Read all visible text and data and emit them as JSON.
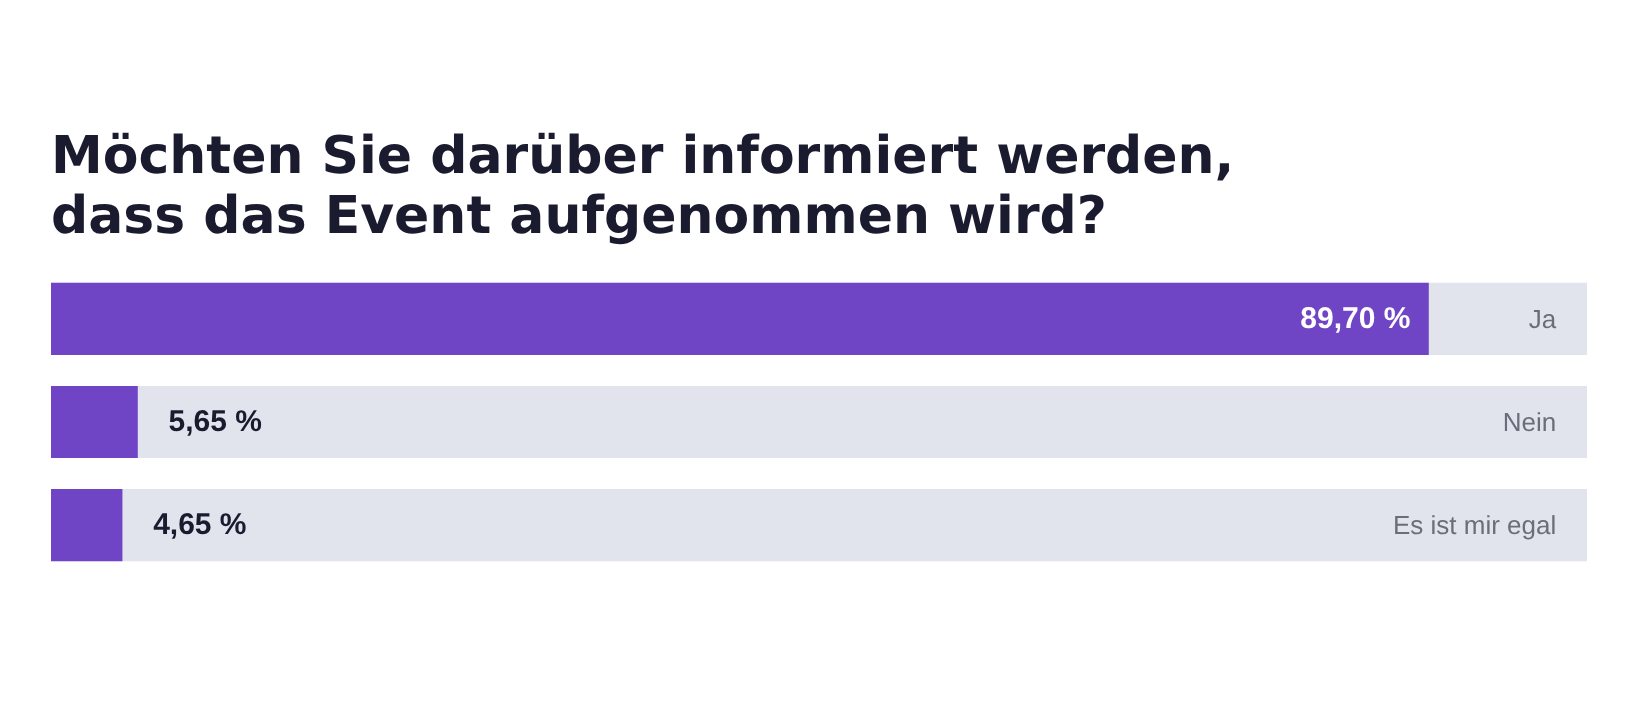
{
  "chart_data": {
    "type": "bar",
    "orientation": "horizontal",
    "title": "Möchten Sie darüber informiert werden, dass das Event aufgenommen wird?",
    "categories": [
      "Ja",
      "Nein",
      "Es ist mir egal"
    ],
    "values": [
      89.7,
      5.65,
      4.65
    ],
    "value_labels": [
      "89,70 %",
      "5,65 %",
      "4,65 %"
    ],
    "color": "#6f45c5",
    "xlim": [
      0,
      100
    ],
    "tick_labels": false,
    "grid": false
  }
}
